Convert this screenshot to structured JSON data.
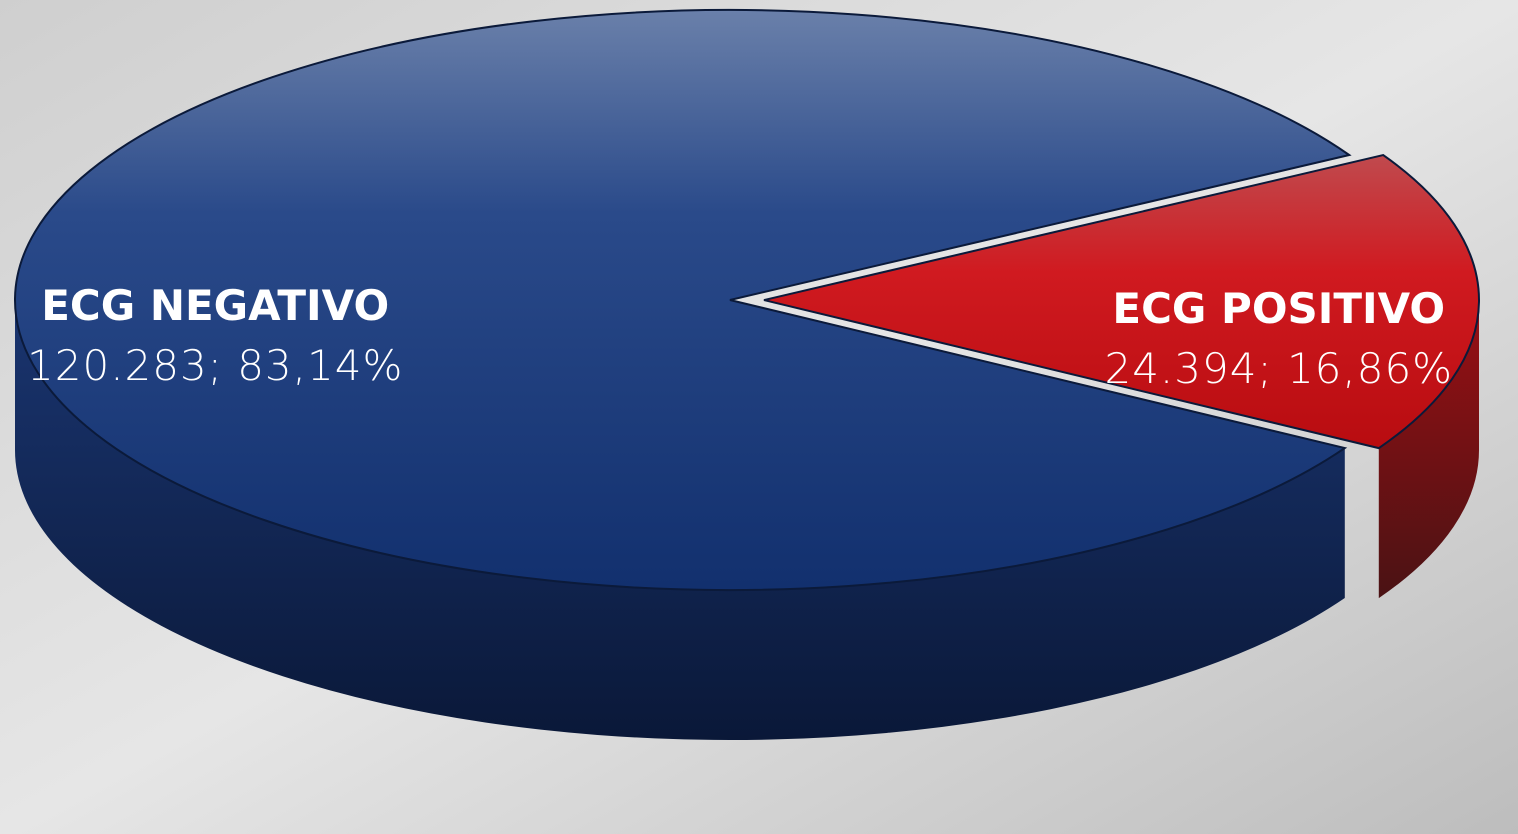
{
  "chart_data": {
    "type": "pie",
    "categories": [
      "ECG NEGATIVO",
      "ECG POSITIVO"
    ],
    "values": [
      120283,
      24394
    ],
    "value_labels": [
      "120.283; 83,14%",
      "24.394; 16,86%"
    ],
    "colors": [
      "#1c3a7a",
      "#c8141a"
    ]
  }
}
